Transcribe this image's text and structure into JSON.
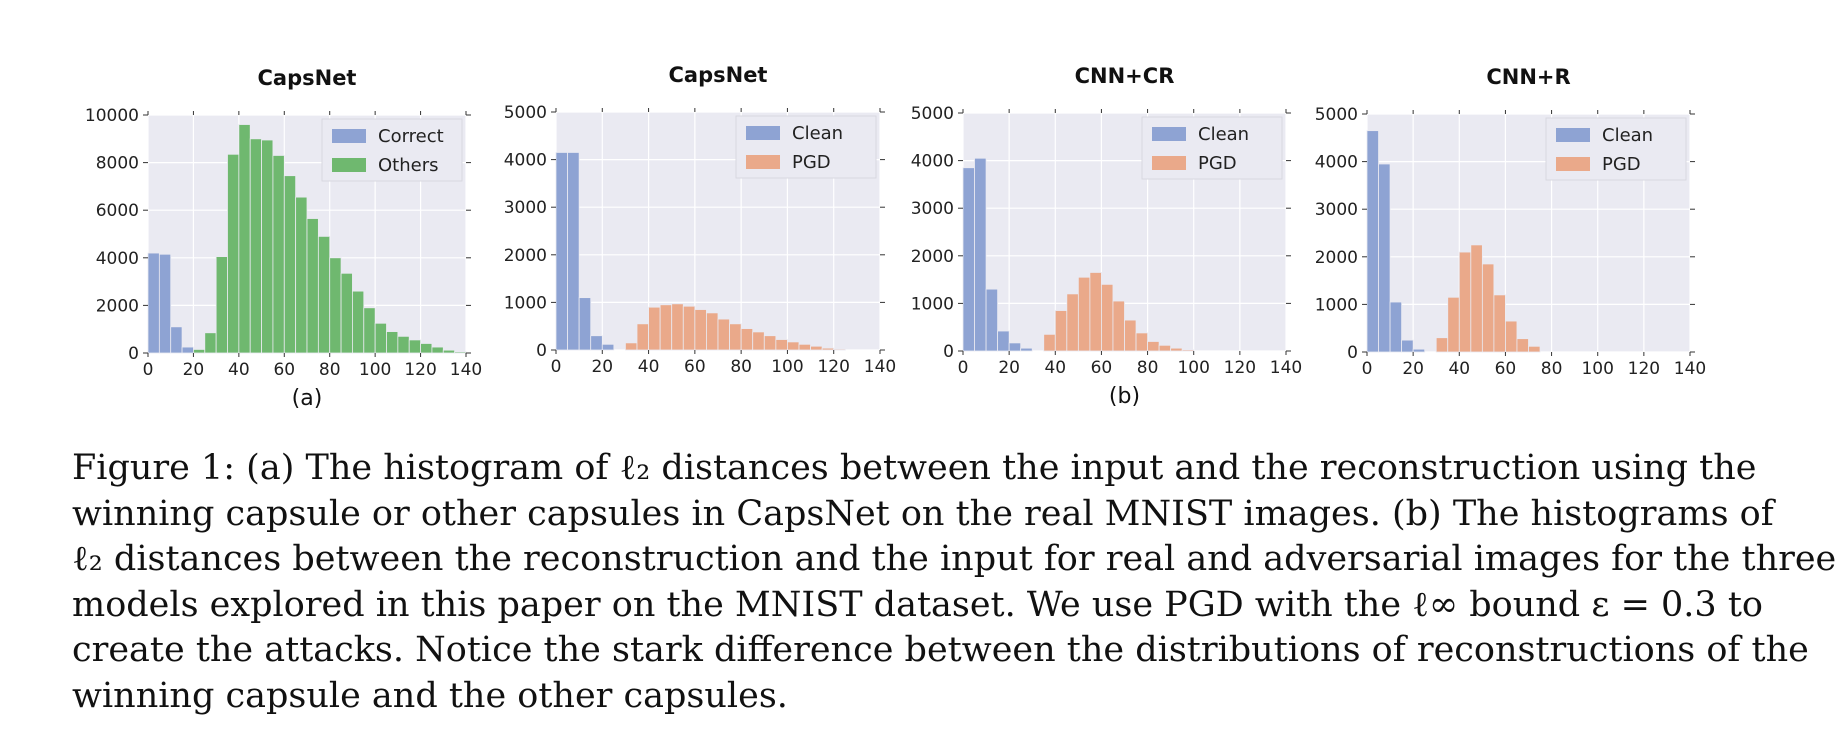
{
  "chart_data": [
    {
      "type": "bar",
      "panel": "(a)",
      "title": "CapsNet",
      "xlabel": "",
      "ylabel": "",
      "xlim": [
        0,
        140
      ],
      "ylim": [
        0,
        10000
      ],
      "xticks": [
        0,
        20,
        40,
        60,
        80,
        100,
        120,
        140
      ],
      "yticks": [
        0,
        2000,
        4000,
        6000,
        8000,
        10000
      ],
      "grid": true,
      "legend_position": "top-right",
      "bin_width": 5,
      "series": [
        {
          "name": "Correct",
          "color": "#8ea3d3",
          "bins": [
            [
              0,
              4200
            ],
            [
              5,
              4150
            ],
            [
              10,
              1100
            ],
            [
              15,
              250
            ],
            [
              20,
              30
            ]
          ]
        },
        {
          "name": "Others",
          "color": "#6fb86f",
          "bins": [
            [
              20,
              150
            ],
            [
              25,
              850
            ],
            [
              30,
              4050
            ],
            [
              35,
              8350
            ],
            [
              40,
              9600
            ],
            [
              45,
              9000
            ],
            [
              50,
              8950
            ],
            [
              55,
              8300
            ],
            [
              60,
              7450
            ],
            [
              65,
              6550
            ],
            [
              70,
              5650
            ],
            [
              75,
              4900
            ],
            [
              80,
              4000
            ],
            [
              85,
              3350
            ],
            [
              90,
              2600
            ],
            [
              95,
              1900
            ],
            [
              100,
              1250
            ],
            [
              105,
              900
            ],
            [
              110,
              700
            ],
            [
              115,
              550
            ],
            [
              120,
              400
            ],
            [
              125,
              250
            ],
            [
              130,
              120
            ],
            [
              135,
              50
            ]
          ]
        }
      ]
    },
    {
      "type": "bar",
      "panel": "",
      "title": "CapsNet",
      "xlabel": "",
      "ylabel": "",
      "xlim": [
        0,
        140
      ],
      "ylim": [
        0,
        5000
      ],
      "xticks": [
        0,
        20,
        40,
        60,
        80,
        100,
        120,
        140
      ],
      "yticks": [
        0,
        1000,
        2000,
        3000,
        4000,
        5000
      ],
      "grid": true,
      "legend_position": "top-right",
      "bin_width": 5,
      "series": [
        {
          "name": "Clean",
          "color": "#8ea3d3",
          "bins": [
            [
              0,
              4150
            ],
            [
              5,
              4150
            ],
            [
              10,
              1100
            ],
            [
              15,
              300
            ],
            [
              20,
              120
            ]
          ]
        },
        {
          "name": "PGD",
          "color": "#eaa98a",
          "bins": [
            [
              30,
              150
            ],
            [
              35,
              550
            ],
            [
              40,
              900
            ],
            [
              45,
              950
            ],
            [
              50,
              970
            ],
            [
              55,
              920
            ],
            [
              60,
              850
            ],
            [
              65,
              780
            ],
            [
              70,
              650
            ],
            [
              75,
              550
            ],
            [
              80,
              450
            ],
            [
              85,
              380
            ],
            [
              90,
              300
            ],
            [
              95,
              220
            ],
            [
              100,
              170
            ],
            [
              105,
              120
            ],
            [
              110,
              80
            ],
            [
              115,
              40
            ],
            [
              120,
              20
            ]
          ]
        }
      ]
    },
    {
      "type": "bar",
      "panel": "(b)",
      "title": "CNN+CR",
      "xlabel": "",
      "ylabel": "",
      "xlim": [
        0,
        140
      ],
      "ylim": [
        0,
        5000
      ],
      "xticks": [
        0,
        20,
        40,
        60,
        80,
        100,
        120,
        140
      ],
      "yticks": [
        0,
        1000,
        2000,
        3000,
        4000,
        5000
      ],
      "grid": true,
      "legend_position": "top-right",
      "bin_width": 5,
      "series": [
        {
          "name": "Clean",
          "color": "#8ea3d3",
          "bins": [
            [
              0,
              3850
            ],
            [
              5,
              4050
            ],
            [
              10,
              1300
            ],
            [
              15,
              420
            ],
            [
              20,
              170
            ],
            [
              25,
              60
            ]
          ]
        },
        {
          "name": "PGD",
          "color": "#eaa98a",
          "bins": [
            [
              35,
              350
            ],
            [
              40,
              850
            ],
            [
              45,
              1200
            ],
            [
              50,
              1550
            ],
            [
              55,
              1650
            ],
            [
              60,
              1400
            ],
            [
              65,
              1050
            ],
            [
              70,
              650
            ],
            [
              75,
              380
            ],
            [
              80,
              200
            ],
            [
              85,
              120
            ],
            [
              90,
              60
            ],
            [
              95,
              25
            ]
          ]
        }
      ]
    },
    {
      "type": "bar",
      "panel": "",
      "title": "CNN+R",
      "xlabel": "",
      "ylabel": "",
      "xlim": [
        0,
        140
      ],
      "ylim": [
        0,
        5000
      ],
      "xticks": [
        0,
        20,
        40,
        60,
        80,
        100,
        120,
        140
      ],
      "yticks": [
        0,
        1000,
        2000,
        3000,
        4000,
        5000
      ],
      "grid": true,
      "legend_position": "top-right",
      "bin_width": 5,
      "series": [
        {
          "name": "Clean",
          "color": "#8ea3d3",
          "bins": [
            [
              0,
              4650
            ],
            [
              5,
              3950
            ],
            [
              10,
              1050
            ],
            [
              15,
              250
            ],
            [
              20,
              60
            ]
          ]
        },
        {
          "name": "PGD",
          "color": "#eaa98a",
          "bins": [
            [
              30,
              300
            ],
            [
              35,
              1150
            ],
            [
              40,
              2100
            ],
            [
              45,
              2250
            ],
            [
              50,
              1850
            ],
            [
              55,
              1200
            ],
            [
              60,
              650
            ],
            [
              65,
              280
            ],
            [
              70,
              120
            ]
          ]
        }
      ]
    }
  ],
  "caption": {
    "lines": [
      {
        "text": "Figure 1: (a) The histogram of ℓ₂ distances between the input and the reconstruction using the",
        "full": true
      },
      {
        "text": "winning capsule or other capsules in CapsNet on the real MNIST images.  (b) The histograms of",
        "full": true
      },
      {
        "text": "ℓ₂ distances between the reconstruction and the input for real and adversarial images for the three",
        "full": true
      },
      {
        "text": "models explored in this paper on the MNIST dataset. We use PGD with the ℓ∞ bound ε = 0.3 to",
        "full": true
      },
      {
        "text": "create the attacks.  Notice the stark difference between the distributions of reconstructions of the",
        "full": true
      },
      {
        "text": "winning capsule and the other capsules.",
        "full": false
      }
    ]
  }
}
